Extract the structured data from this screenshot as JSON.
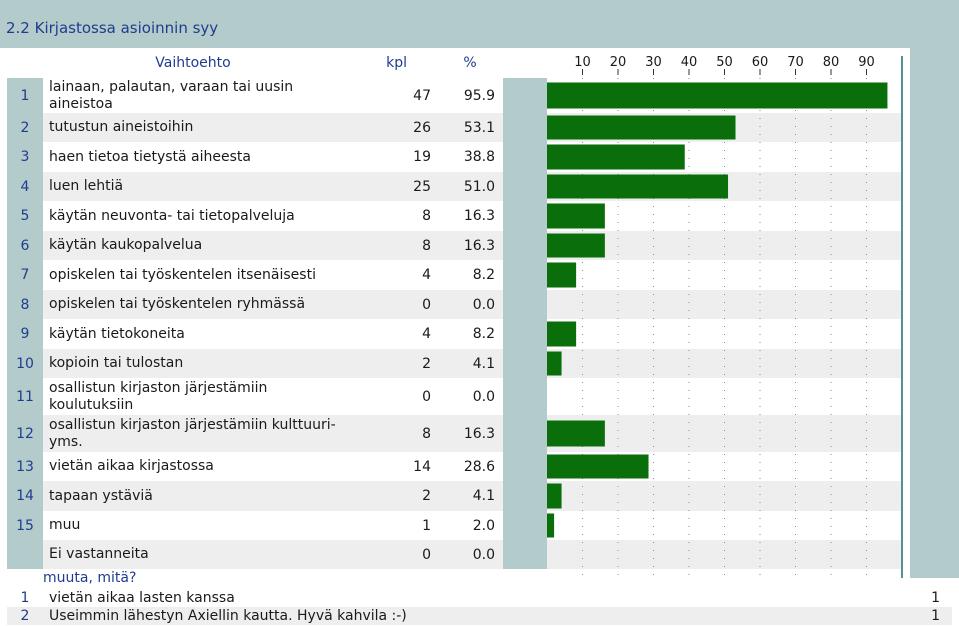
{
  "title": "2.2 Kirjastossa asioinnin syy",
  "header": {
    "option": "Vaihtoehto",
    "count": "kpl",
    "percent": "%"
  },
  "chart_data": {
    "type": "bar",
    "orientation": "horizontal",
    "xlim": [
      0,
      100
    ],
    "x_ticks": [
      "10",
      "20",
      "30",
      "40",
      "50",
      "60",
      "70",
      "80",
      "90"
    ],
    "tick_values": [
      10,
      20,
      30,
      40,
      50,
      60,
      70,
      80,
      90
    ],
    "grid": true,
    "bar_color": "#0a6e0a",
    "rows": [
      {
        "num": "1",
        "label": "lainaan, palautan, varaan tai uusin aineistoa",
        "kpl": "47",
        "pct": "95.9",
        "value": 95.9
      },
      {
        "num": "2",
        "label": "tutustun aineistoihin",
        "kpl": "26",
        "pct": "53.1",
        "value": 53.1
      },
      {
        "num": "3",
        "label": "haen tietoa tietystä aiheesta",
        "kpl": "19",
        "pct": "38.8",
        "value": 38.8
      },
      {
        "num": "4",
        "label": "luen lehtiä",
        "kpl": "25",
        "pct": "51.0",
        "value": 51.0
      },
      {
        "num": "5",
        "label": "käytän neuvonta- tai tietopalveluja",
        "kpl": "8",
        "pct": "16.3",
        "value": 16.3
      },
      {
        "num": "6",
        "label": "käytän kaukopalvelua",
        "kpl": "8",
        "pct": "16.3",
        "value": 16.3
      },
      {
        "num": "7",
        "label": "opiskelen tai työskentelen itsenäisesti",
        "kpl": "4",
        "pct": "8.2",
        "value": 8.2
      },
      {
        "num": "8",
        "label": "opiskelen tai työskentelen ryhmässä",
        "kpl": "0",
        "pct": "0.0",
        "value": 0.0
      },
      {
        "num": "9",
        "label": "käytän tietokoneita",
        "kpl": "4",
        "pct": "8.2",
        "value": 8.2
      },
      {
        "num": "10",
        "label": "kopioin tai tulostan",
        "kpl": "2",
        "pct": "4.1",
        "value": 4.1
      },
      {
        "num": "11",
        "label": "osallistun kirjaston järjestämiin koulutuksiin",
        "kpl": "0",
        "pct": "0.0",
        "value": 0.0
      },
      {
        "num": "12",
        "label": "osallistun kirjaston järjestämiin kulttuuri- yms.",
        "kpl": "8",
        "pct": "16.3",
        "value": 16.3
      },
      {
        "num": "13",
        "label": "vietän aikaa kirjastossa",
        "kpl": "14",
        "pct": "28.6",
        "value": 28.6
      },
      {
        "num": "14",
        "label": "tapaan ystäviä",
        "kpl": "2",
        "pct": "4.1",
        "value": 4.1
      },
      {
        "num": "15",
        "label": "muu",
        "kpl": "1",
        "pct": "2.0",
        "value": 2.0
      },
      {
        "num": "",
        "label": "Ei vastanneita",
        "kpl": "0",
        "pct": "0.0",
        "value": 0.0
      }
    ]
  },
  "footer": {
    "heading": "muuta, mitä?",
    "items": [
      {
        "num": "1",
        "text": "vietän aikaa lasten kanssa",
        "count": "1"
      },
      {
        "num": "2",
        "text": "Useimmin lähestyn Axiellin kautta. Hyvä kahvila :-)",
        "count": "1"
      }
    ]
  }
}
